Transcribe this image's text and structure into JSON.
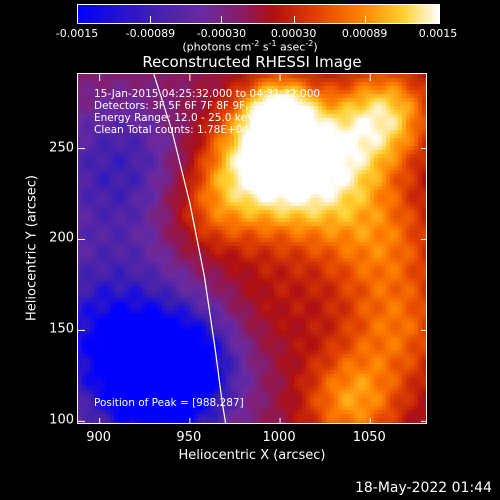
{
  "chart_data": {
    "type": "heatmap",
    "title": "Reconstructed RHESSI Image",
    "colorbar": {
      "ticks": [
        "-0.0015",
        "-0.00089",
        "-0.00030",
        "0.00030",
        "0.00089",
        "0.0015"
      ],
      "range": [
        -0.0015,
        0.0015
      ],
      "colors": [
        "#0000ff",
        "#3d1fb0",
        "#6a2aa0",
        "#8a1a60",
        "#b01010",
        "#e04000",
        "#ff8000",
        "#ffd030",
        "#ffffff"
      ]
    },
    "units_label": "(photons cm-2 s-1 asec-2)",
    "info": {
      "time": "15-Jan-2015 04:25:32.000 to 04:31:32.000",
      "detectors": "Detectors: 3F 5F 6F 7F 8F 9F, Att 0",
      "energy": "Energy Range: 12.0 - 25.0 keV",
      "clean": "Clean     Total counts: 1.78E+04",
      "peak": "Position of Peak = [988,287]"
    },
    "xlabel": "Heliocentric X (arcsec)",
    "ylabel": "Heliocentric Y (arcsec)",
    "xlim": [
      888,
      1082
    ],
    "ylim": [
      98,
      291
    ],
    "x_ticks": [
      "900",
      "950",
      "1000",
      "1050"
    ],
    "y_ticks": [
      "100",
      "150",
      "200",
      "250"
    ],
    "peak": [
      988,
      287
    ],
    "limb": [
      [
        930,
        291
      ],
      [
        940,
        260
      ],
      [
        950,
        220
      ],
      [
        958,
        180
      ],
      [
        964,
        140
      ],
      [
        968,
        110
      ],
      [
        970,
        98
      ]
    ],
    "sources": [
      {
        "x": 1000,
        "y": 270,
        "v": 0.0015,
        "s": 14
      },
      {
        "x": 985,
        "y": 245,
        "v": 0.0013,
        "s": 22
      },
      {
        "x": 1010,
        "y": 230,
        "v": 0.0011,
        "s": 24
      },
      {
        "x": 1035,
        "y": 250,
        "v": 0.001,
        "s": 22
      },
      {
        "x": 1060,
        "y": 270,
        "v": 0.0012,
        "s": 18
      },
      {
        "x": 1055,
        "y": 200,
        "v": 0.0009,
        "s": 24
      },
      {
        "x": 1065,
        "y": 150,
        "v": 0.0008,
        "s": 22
      },
      {
        "x": 1040,
        "y": 110,
        "v": 0.0011,
        "s": 20
      },
      {
        "x": 990,
        "y": 160,
        "v": 0.0004,
        "s": 24
      },
      {
        "x": 960,
        "y": 215,
        "v": 0.0007,
        "s": 18
      },
      {
        "x": 905,
        "y": 150,
        "v": -0.001,
        "s": 34
      },
      {
        "x": 910,
        "y": 240,
        "v": -0.0008,
        "s": 30
      },
      {
        "x": 935,
        "y": 115,
        "v": -0.0012,
        "s": 26
      },
      {
        "x": 960,
        "y": 140,
        "v": -0.0006,
        "s": 22
      }
    ]
  },
  "datestamp": "18-May-2022 01:44"
}
